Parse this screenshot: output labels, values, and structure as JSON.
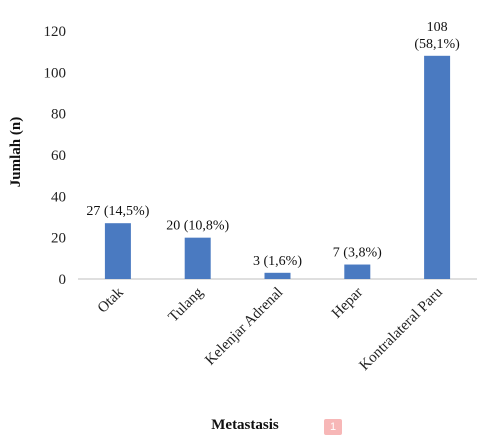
{
  "chart_data": {
    "type": "bar",
    "categories": [
      "Otak",
      "Tulang",
      "Kelenjar Adrenal",
      "Hepar",
      "Kontralateral Paru"
    ],
    "values": [
      27,
      20,
      3,
      7,
      108
    ],
    "data_labels": [
      "27 (14,5%)",
      "20 (10,8%)",
      "3 (1,6%)",
      "7 (3,8%)",
      "108 (58,1%)"
    ],
    "xlabel": "Metastasis",
    "ylabel": "Jumlah (n)",
    "ylim": [
      0,
      120
    ],
    "yticks": [
      0,
      20,
      40,
      60,
      80,
      100,
      120
    ],
    "grid": false,
    "bar_color": "#4a7ac1"
  },
  "badge": {
    "text": "1"
  }
}
